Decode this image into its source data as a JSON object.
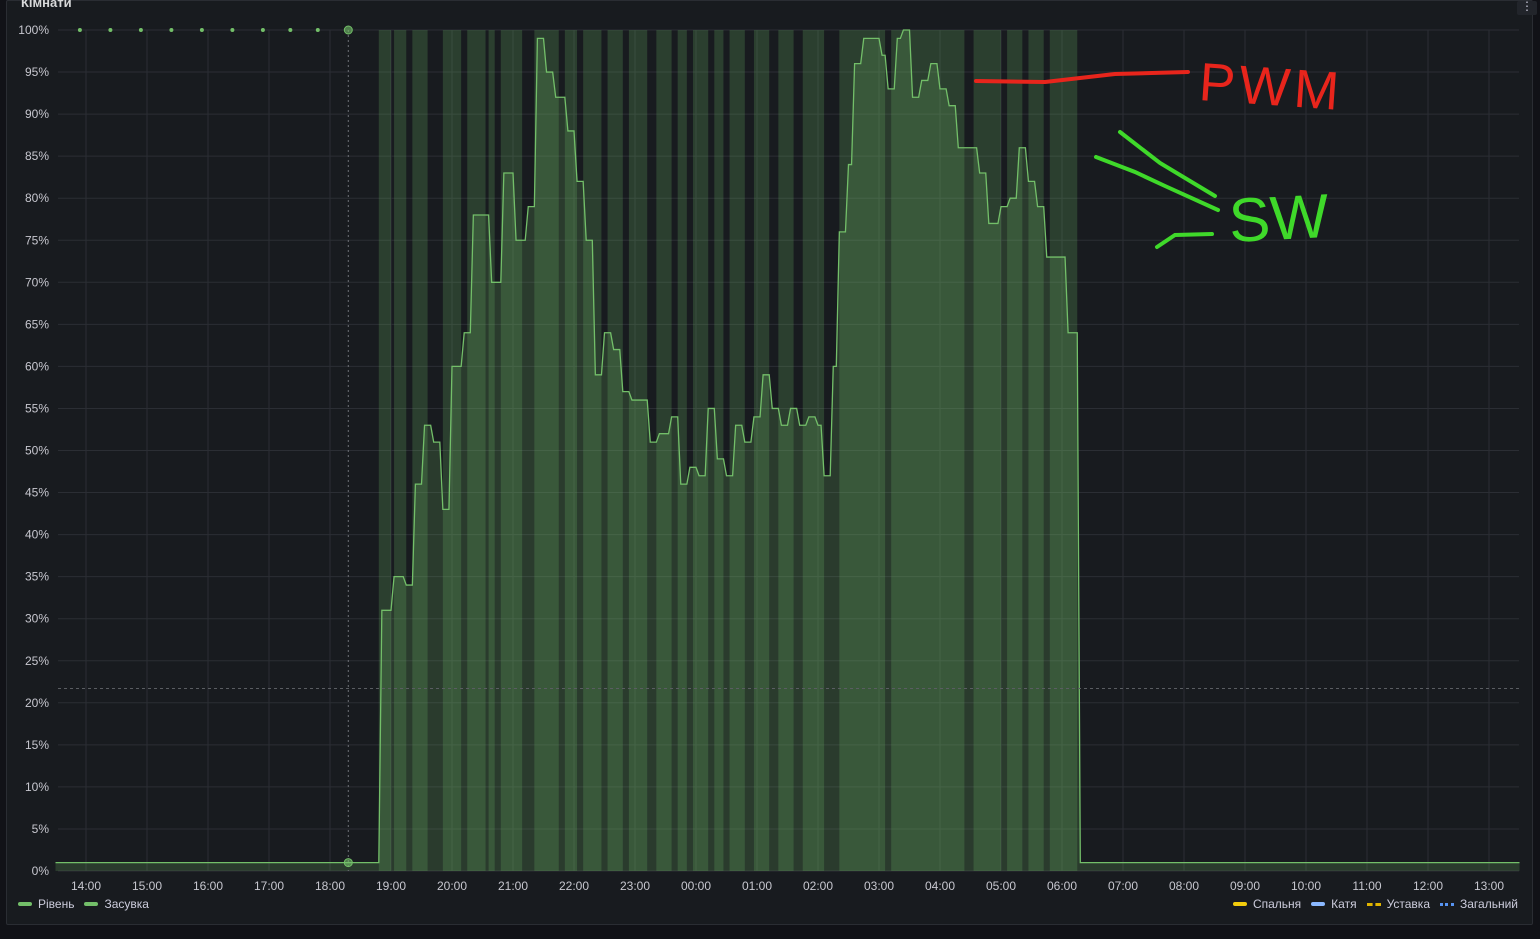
{
  "panel": {
    "title": "Кімнати",
    "menu_glyph": "⋮"
  },
  "colors": {
    "level": "#73bf69",
    "valve": "#73bf69",
    "spalnia": "#f2cc0c",
    "katia": "#8ab8ff",
    "ustavka": "#e0b400",
    "zagalnyi": "#5794f2",
    "annotation_pwm": "#e8251c",
    "annotation_sw": "#3fd92a"
  },
  "chart_data": {
    "type": "area",
    "x_unit": "hours since 13:30 (axis shows local time)",
    "xlim": [
      0,
      24
    ],
    "ylim": [
      0,
      100
    ],
    "y_ticks": [
      "0%",
      "5%",
      "10%",
      "15%",
      "20%",
      "25%",
      "30%",
      "35%",
      "40%",
      "45%",
      "50%",
      "55%",
      "60%",
      "65%",
      "70%",
      "75%",
      "80%",
      "85%",
      "90%",
      "95%",
      "100%"
    ],
    "x_ticks": [
      "14:00",
      "15:00",
      "16:00",
      "17:00",
      "18:00",
      "19:00",
      "20:00",
      "21:00",
      "22:00",
      "23:00",
      "00:00",
      "01:00",
      "02:00",
      "03:00",
      "04:00",
      "05:00",
      "06:00",
      "07:00",
      "08:00",
      "09:00",
      "10:00",
      "11:00",
      "12:00",
      "13:00"
    ],
    "threshold_dashed_at": 21.7,
    "series": [
      {
        "name": "Рівень",
        "points": [
          [
            0,
            1
          ],
          [
            5.3,
            1
          ],
          [
            5.35,
            31
          ],
          [
            5.5,
            31
          ],
          [
            5.55,
            35
          ],
          [
            5.7,
            35
          ],
          [
            5.75,
            34
          ],
          [
            5.85,
            34
          ],
          [
            5.9,
            46
          ],
          [
            6.0,
            46
          ],
          [
            6.05,
            53
          ],
          [
            6.15,
            53
          ],
          [
            6.2,
            51
          ],
          [
            6.3,
            51
          ],
          [
            6.35,
            43
          ],
          [
            6.45,
            43
          ],
          [
            6.5,
            60
          ],
          [
            6.65,
            60
          ],
          [
            6.7,
            64
          ],
          [
            6.8,
            64
          ],
          [
            6.85,
            78
          ],
          [
            7.1,
            78
          ],
          [
            7.15,
            70
          ],
          [
            7.3,
            70
          ],
          [
            7.35,
            83
          ],
          [
            7.5,
            83
          ],
          [
            7.55,
            75
          ],
          [
            7.7,
            75
          ],
          [
            7.75,
            79
          ],
          [
            7.85,
            79
          ],
          [
            7.9,
            99
          ],
          [
            8.0,
            99
          ],
          [
            8.05,
            95
          ],
          [
            8.15,
            95
          ],
          [
            8.2,
            92
          ],
          [
            8.35,
            92
          ],
          [
            8.4,
            88
          ],
          [
            8.5,
            88
          ],
          [
            8.55,
            82
          ],
          [
            8.65,
            82
          ],
          [
            8.7,
            75
          ],
          [
            8.8,
            75
          ],
          [
            8.85,
            59
          ],
          [
            8.95,
            59
          ],
          [
            9.0,
            64
          ],
          [
            9.1,
            64
          ],
          [
            9.15,
            62
          ],
          [
            9.25,
            62
          ],
          [
            9.3,
            57
          ],
          [
            9.4,
            57
          ],
          [
            9.45,
            56
          ],
          [
            9.7,
            56
          ],
          [
            9.75,
            51
          ],
          [
            9.85,
            51
          ],
          [
            9.9,
            52
          ],
          [
            10.05,
            52
          ],
          [
            10.1,
            54
          ],
          [
            10.2,
            54
          ],
          [
            10.25,
            46
          ],
          [
            10.35,
            46
          ],
          [
            10.4,
            48
          ],
          [
            10.5,
            48
          ],
          [
            10.55,
            47
          ],
          [
            10.65,
            47
          ],
          [
            10.7,
            55
          ],
          [
            10.8,
            55
          ],
          [
            10.85,
            49
          ],
          [
            10.95,
            49
          ],
          [
            11.0,
            47
          ],
          [
            11.1,
            47
          ],
          [
            11.15,
            53
          ],
          [
            11.25,
            53
          ],
          [
            11.3,
            51
          ],
          [
            11.4,
            51
          ],
          [
            11.45,
            54
          ],
          [
            11.55,
            54
          ],
          [
            11.6,
            59
          ],
          [
            11.7,
            59
          ],
          [
            11.75,
            55
          ],
          [
            11.85,
            55
          ],
          [
            11.9,
            53
          ],
          [
            12.0,
            53
          ],
          [
            12.05,
            55
          ],
          [
            12.15,
            55
          ],
          [
            12.2,
            53
          ],
          [
            12.3,
            53
          ],
          [
            12.35,
            54
          ],
          [
            12.45,
            54
          ],
          [
            12.5,
            53
          ],
          [
            12.55,
            53
          ],
          [
            12.6,
            47
          ],
          [
            12.7,
            47
          ],
          [
            12.75,
            60
          ],
          [
            12.8,
            60
          ],
          [
            12.85,
            76
          ],
          [
            12.95,
            76
          ],
          [
            13.0,
            84
          ],
          [
            13.05,
            84
          ],
          [
            13.1,
            96
          ],
          [
            13.2,
            96
          ],
          [
            13.25,
            99
          ],
          [
            13.5,
            99
          ],
          [
            13.55,
            97
          ],
          [
            13.6,
            97
          ],
          [
            13.65,
            93
          ],
          [
            13.75,
            93
          ],
          [
            13.8,
            99
          ],
          [
            13.85,
            99
          ],
          [
            13.9,
            100
          ],
          [
            14.0,
            100
          ],
          [
            14.05,
            92
          ],
          [
            14.15,
            92
          ],
          [
            14.2,
            94
          ],
          [
            14.3,
            94
          ],
          [
            14.35,
            96
          ],
          [
            14.45,
            96
          ],
          [
            14.5,
            93
          ],
          [
            14.6,
            93
          ],
          [
            14.65,
            91
          ],
          [
            14.75,
            91
          ],
          [
            14.8,
            86
          ],
          [
            15.1,
            86
          ],
          [
            15.15,
            83
          ],
          [
            15.25,
            83
          ],
          [
            15.3,
            77
          ],
          [
            15.45,
            77
          ],
          [
            15.5,
            79
          ],
          [
            15.6,
            79
          ],
          [
            15.65,
            80
          ],
          [
            15.75,
            80
          ],
          [
            15.8,
            86
          ],
          [
            15.9,
            86
          ],
          [
            15.95,
            82
          ],
          [
            16.05,
            82
          ],
          [
            16.1,
            79
          ],
          [
            16.2,
            79
          ],
          [
            16.25,
            73
          ],
          [
            16.55,
            73
          ],
          [
            16.6,
            64
          ],
          [
            16.75,
            64
          ],
          [
            16.8,
            1
          ],
          [
            24,
            1
          ]
        ]
      },
      {
        "name": "Засувка",
        "on_intervals": [
          [
            5.3,
            5.5
          ],
          [
            5.55,
            5.75
          ],
          [
            5.85,
            6.1
          ],
          [
            6.35,
            6.65
          ],
          [
            6.75,
            7.05
          ],
          [
            7.1,
            7.2
          ],
          [
            7.3,
            7.65
          ],
          [
            7.85,
            8.25
          ],
          [
            8.35,
            8.55
          ],
          [
            8.65,
            8.95
          ],
          [
            9.05,
            9.3
          ],
          [
            9.4,
            9.7
          ],
          [
            9.85,
            10.1
          ],
          [
            10.2,
            10.35
          ],
          [
            10.45,
            10.7
          ],
          [
            10.8,
            10.95
          ],
          [
            11.05,
            11.3
          ],
          [
            11.45,
            11.7
          ],
          [
            11.85,
            12.1
          ],
          [
            12.25,
            12.6
          ],
          [
            12.85,
            13.6
          ],
          [
            13.7,
            14.9
          ],
          [
            15.05,
            15.5
          ],
          [
            15.6,
            15.85
          ],
          [
            15.95,
            16.2
          ],
          [
            16.3,
            16.75
          ]
        ]
      }
    ],
    "markers": {
      "hour": 4.8,
      "dots_at_100": [
        0.4,
        0.9,
        1.4,
        1.9,
        2.4,
        2.9,
        3.4,
        3.85,
        4.3
      ]
    }
  },
  "annotations": {
    "pwm": "PWM",
    "sw": "SW"
  },
  "legend": {
    "left": [
      "Рівень",
      "Засувка"
    ],
    "right": [
      "Спальня",
      "Катя",
      "Уставка",
      "Загальний"
    ]
  }
}
